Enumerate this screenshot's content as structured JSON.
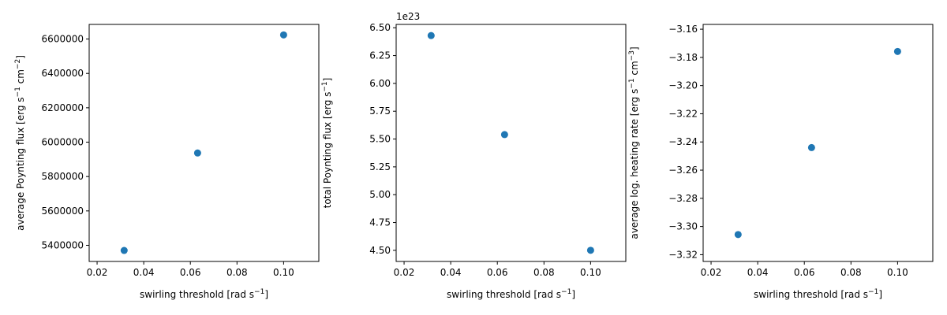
{
  "colors": {
    "marker": "#1f77b4",
    "axis": "#000000",
    "background": "#ffffff"
  },
  "chart_data": [
    {
      "type": "scatter",
      "xlabel": "swirling threshold [rad s",
      "xlabel_sup": "−1",
      "xlabel_end": "]",
      "ylabel": "average Poynting flux [erg s",
      "ylabel_sup1": "−1",
      "ylabel_mid": " cm",
      "ylabel_sup2": "−2",
      "ylabel_end": "]",
      "offset_text": "",
      "xlim": [
        0.0166,
        0.1151
      ],
      "ylim": [
        5306000,
        6685000
      ],
      "x_ticks": [
        0.02,
        0.04,
        0.06,
        0.08,
        0.1
      ],
      "x_tick_labels": [
        "0.02",
        "0.04",
        "0.06",
        "0.08",
        "0.10"
      ],
      "y_ticks": [
        5400000,
        5600000,
        5800000,
        6000000,
        6200000,
        6400000,
        6600000
      ],
      "y_tick_labels": [
        "5400000",
        "5600000",
        "5800000",
        "6000000",
        "6200000",
        "6400000",
        "6600000"
      ],
      "x": [
        0.0316,
        0.0631,
        0.1
      ],
      "y": [
        5370000,
        5937000,
        6624000
      ]
    },
    {
      "type": "scatter",
      "xlabel": "swirling threshold [rad s",
      "xlabel_sup": "−1",
      "xlabel_end": "]",
      "ylabel": "total Poynting flux [erg s",
      "ylabel_sup1": "−1",
      "ylabel_mid": "",
      "ylabel_sup2": "",
      "ylabel_end": "]",
      "offset_text": "1e23",
      "xlim": [
        0.0166,
        0.1151
      ],
      "ylim": [
        4.4,
        6.53
      ],
      "x_ticks": [
        0.02,
        0.04,
        0.06,
        0.08,
        0.1
      ],
      "x_tick_labels": [
        "0.02",
        "0.04",
        "0.06",
        "0.08",
        "0.10"
      ],
      "y_ticks": [
        4.5,
        4.75,
        5.0,
        5.25,
        5.5,
        5.75,
        6.0,
        6.25,
        6.5
      ],
      "y_tick_labels": [
        "4.50",
        "4.75",
        "5.00",
        "5.25",
        "5.50",
        "5.75",
        "6.00",
        "6.25",
        "6.50"
      ],
      "x": [
        0.0316,
        0.0631,
        0.1
      ],
      "y": [
        6.43,
        5.54,
        4.5
      ]
    },
    {
      "type": "scatter",
      "xlabel": "swirling threshold [rad s",
      "xlabel_sup": "−1",
      "xlabel_end": "]",
      "ylabel": "average log. heating rate [erg s",
      "ylabel_sup1": "−1",
      "ylabel_mid": " cm",
      "ylabel_sup2": "−3",
      "ylabel_end": "]",
      "offset_text": "",
      "xlim": [
        0.0166,
        0.1151
      ],
      "ylim": [
        -3.3248,
        -3.1566
      ],
      "x_ticks": [
        0.02,
        0.04,
        0.06,
        0.08,
        0.1
      ],
      "x_tick_labels": [
        "0.02",
        "0.04",
        "0.06",
        "0.08",
        "0.10"
      ],
      "y_ticks": [
        -3.32,
        -3.3,
        -3.28,
        -3.26,
        -3.24,
        -3.22,
        -3.2,
        -3.18,
        -3.16
      ],
      "y_tick_labels": [
        "−3.32",
        "−3.30",
        "−3.28",
        "−3.26",
        "−3.24",
        "−3.22",
        "−3.20",
        "−3.18",
        "−3.16"
      ],
      "x": [
        0.0316,
        0.0631,
        0.1
      ],
      "y": [
        -3.3057,
        -3.244,
        -3.1758
      ]
    }
  ]
}
